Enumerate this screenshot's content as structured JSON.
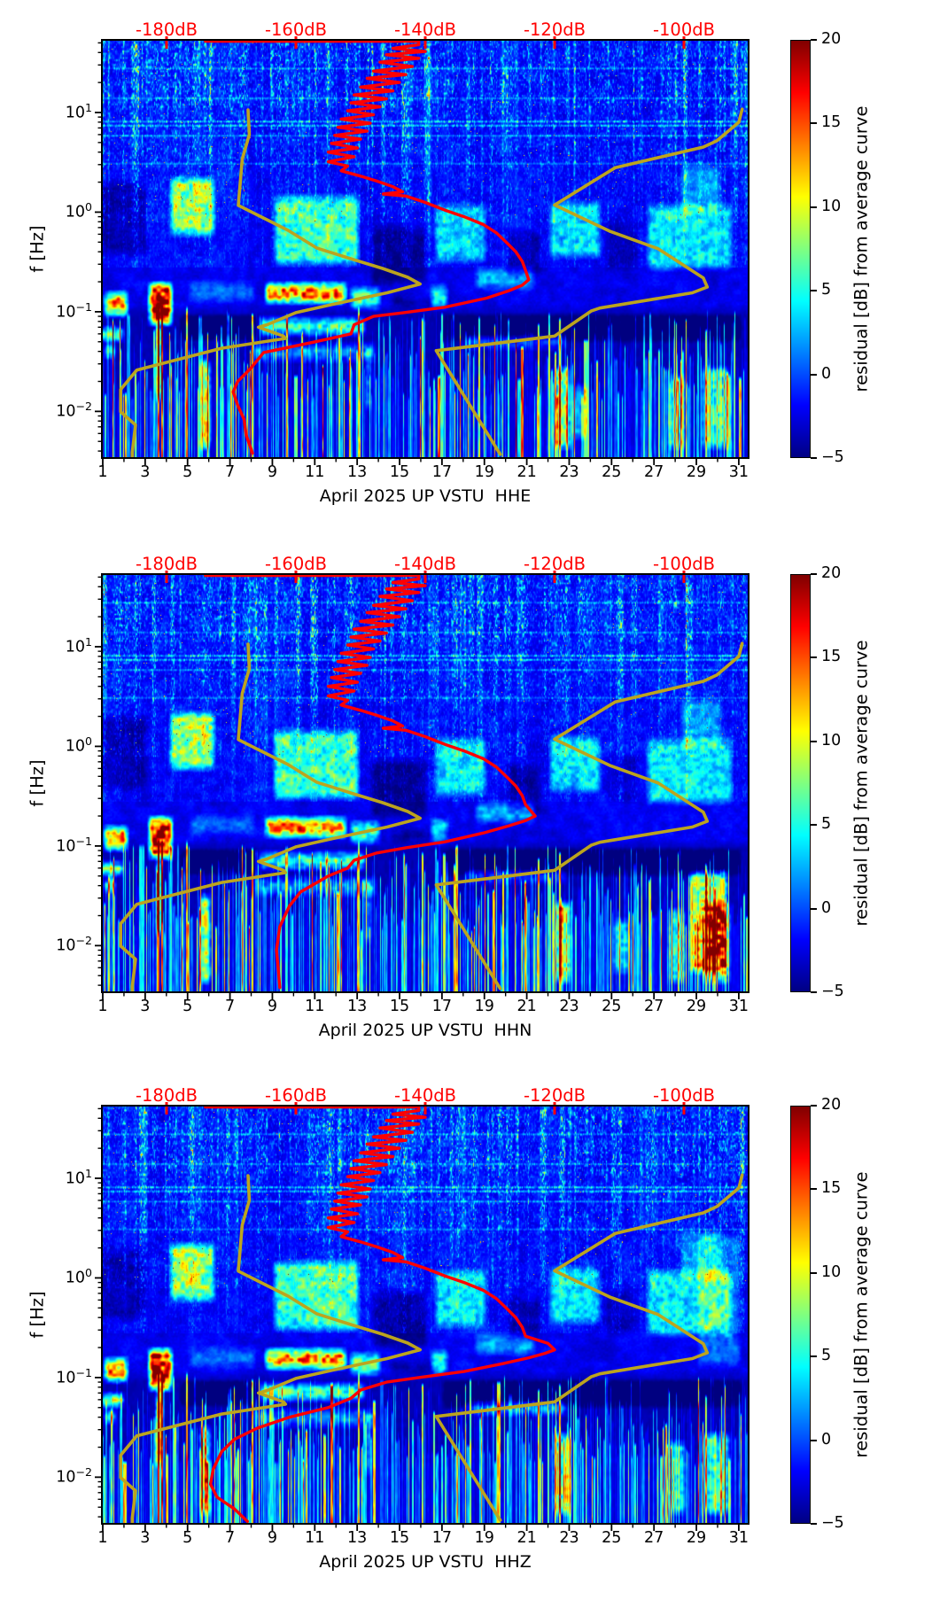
{
  "chart_data": {
    "type": "heatmap",
    "description": "Three daily power-spectral-density residual spectrograms (jet colormap) with overlaid average PSD curve (red) and noise-model curves (dark yellow)",
    "shared": {
      "ylabel": "f [Hz]",
      "y_tick_exponents": [
        "1",
        "0",
        "−1",
        "−2"
      ],
      "x_ticks": [
        1,
        3,
        5,
        7,
        9,
        11,
        13,
        15,
        17,
        19,
        21,
        23,
        25,
        27,
        29,
        31
      ],
      "x_range_days": [
        1,
        31.5
      ],
      "f_range_hz": [
        0.0034,
        53.6
      ],
      "top_axis_labels": [
        "-180dB",
        "-160dB",
        "-140dB",
        "-120dB",
        "-100dB"
      ],
      "top_axis_dB": [
        -180,
        -160,
        -140,
        -120,
        -100
      ],
      "dB_range": [
        -190,
        -90
      ],
      "colorbar": {
        "label": "residual [dB] from average curve",
        "tick_labels": [
          "20",
          "15",
          "10",
          "5",
          "0",
          "−5"
        ],
        "tick_values": [
          20,
          15,
          10,
          5,
          0,
          -5
        ],
        "range": [
          -5,
          20
        ],
        "colormap": "jet"
      },
      "colors": {
        "curve_red": "#ff0000",
        "curve_olive": "#bca41e",
        "top_axis_red": "#ff0000",
        "axis_black": "#000000"
      },
      "curves": {
        "low_noise_model_dB_f": [
          [
            -167.4,
            10.6
          ],
          [
            -167.2,
            6.0
          ],
          [
            -168.3,
            3.4
          ],
          [
            -168.9,
            1.17
          ],
          [
            -164.8,
            0.858
          ],
          [
            -161.2,
            0.656
          ],
          [
            -156.8,
            0.437
          ],
          [
            -151.1,
            0.334
          ],
          [
            -146.6,
            0.272
          ],
          [
            -142.7,
            0.222
          ],
          [
            -140.8,
            0.19
          ],
          [
            -145.9,
            0.155
          ],
          [
            -154.2,
            0.119
          ],
          [
            -160,
            0.098
          ],
          [
            -164.5,
            0.074
          ],
          [
            -165.8,
            0.07
          ],
          [
            -161.9,
            0.057
          ],
          [
            -161.6,
            0.054
          ],
          [
            -171.5,
            0.043
          ],
          [
            -184.6,
            0.026
          ],
          [
            -187.1,
            0.0166
          ],
          [
            -187.1,
            0.0099
          ],
          [
            -184.8,
            0.0073
          ],
          [
            -185.3,
            0.0039
          ],
          [
            -185.3,
            0.0034
          ]
        ],
        "high_noise_model_dB_f": [
          [
            -91,
            10.8
          ],
          [
            -91.5,
            8.0
          ],
          [
            -94.9,
            5.2
          ],
          [
            -97,
            4.5
          ],
          [
            -110.6,
            2.8
          ],
          [
            -120,
            1.18
          ],
          [
            -111.5,
            0.645
          ],
          [
            -104,
            0.43
          ],
          [
            -97,
            0.218
          ],
          [
            -96.4,
            0.177
          ],
          [
            -98.7,
            0.155
          ],
          [
            -113,
            0.109
          ],
          [
            -114.3,
            0.102
          ],
          [
            -120,
            0.057
          ],
          [
            -138.3,
            0.0407
          ],
          [
            -128.4,
            0.0037
          ]
        ],
        "red_base_dB_f": [
          [
            -174,
            52
          ],
          [
            -141,
            52
          ],
          [
            -141,
            48
          ],
          [
            -145,
            44
          ],
          [
            -140,
            41
          ],
          [
            -146,
            38
          ],
          [
            -141,
            35
          ],
          [
            -147,
            32
          ],
          [
            -142,
            29
          ],
          [
            -148,
            26
          ],
          [
            -143,
            24
          ],
          [
            -149,
            22
          ],
          [
            -144,
            20
          ],
          [
            -150,
            18
          ],
          [
            -145,
            16.5
          ],
          [
            -151,
            15
          ],
          [
            -146,
            13.7
          ],
          [
            -151.5,
            12.5
          ],
          [
            -147,
            11.4
          ],
          [
            -152,
            10.4
          ],
          [
            -148,
            9.5
          ],
          [
            -153,
            8.6
          ],
          [
            -148.5,
            7.8
          ],
          [
            -153.5,
            7.1
          ],
          [
            -149,
            6.5
          ],
          [
            -154,
            5.9
          ],
          [
            -150,
            5.4
          ],
          [
            -154.5,
            4.9
          ],
          [
            -150.5,
            4.4
          ],
          [
            -155,
            4.0
          ],
          [
            -151,
            3.6
          ],
          [
            -155,
            3.2
          ],
          [
            -152,
            2.9
          ],
          [
            -153,
            2.6
          ],
          [
            -150,
            2.3
          ],
          [
            -147.5,
            2.05
          ],
          [
            -145,
            1.8
          ],
          [
            -143.5,
            1.6
          ],
          [
            -146.5,
            1.52
          ],
          [
            -143,
            1.45
          ],
          [
            -140,
            1.25
          ],
          [
            -137,
            1.05
          ],
          [
            -134,
            0.9
          ],
          [
            -131,
            0.75
          ],
          [
            -129,
            0.62
          ],
          [
            -127.5,
            0.5
          ],
          [
            -126,
            0.4
          ],
          [
            -125,
            0.32
          ],
          [
            -124.5,
            0.26
          ]
        ]
      }
    },
    "subplots": [
      {
        "id": "HHE",
        "xlabel": "April 2025 UP VSTU  HHE",
        "seed": 11,
        "red_tail_dB_f": [
          [
            -124,
            0.21
          ],
          [
            -125,
            0.185
          ],
          [
            -127,
            0.163
          ],
          [
            -130.5,
            0.137
          ],
          [
            -137,
            0.111
          ],
          [
            -143.3,
            0.098
          ],
          [
            -148,
            0.09
          ],
          [
            -151,
            0.074
          ],
          [
            -151.5,
            0.06
          ],
          [
            -157,
            0.05
          ],
          [
            -165,
            0.039
          ],
          [
            -167,
            0.027
          ],
          [
            -169,
            0.02
          ],
          [
            -169.7,
            0.0157
          ],
          [
            -169,
            0.0115
          ],
          [
            -168,
            0.0083
          ],
          [
            -167.7,
            0.0058
          ],
          [
            -166.7,
            0.0038
          ]
        ],
        "extra_blobs": [
          [
            23.0,
            24.0,
            0.005,
            0.02,
            5
          ]
        ]
      },
      {
        "id": "HHN",
        "xlabel": "April 2025 UP VSTU  HHN",
        "seed": 23,
        "red_tail_dB_f": [
          [
            -123,
            0.2
          ],
          [
            -124.5,
            0.18
          ],
          [
            -127,
            0.16
          ],
          [
            -131,
            0.135
          ],
          [
            -137,
            0.11
          ],
          [
            -143,
            0.096
          ],
          [
            -147.5,
            0.085
          ],
          [
            -151,
            0.072
          ],
          [
            -152,
            0.06
          ],
          [
            -155,
            0.05
          ],
          [
            -159.3,
            0.0345
          ],
          [
            -161,
            0.025
          ],
          [
            -162.5,
            0.0155
          ],
          [
            -163,
            0.009
          ],
          [
            -162.7,
            0.0055
          ],
          [
            -162.5,
            0.0038
          ]
        ],
        "extra_blobs": [
          [
            28.6,
            30.6,
            0.005,
            0.06,
            12
          ],
          [
            25.0,
            26.0,
            0.005,
            0.02,
            6
          ]
        ]
      },
      {
        "id": "HHZ",
        "xlabel": "April 2025 UP VSTU  HHZ",
        "seed": 37,
        "red_tail_dB_f": [
          [
            -121,
            0.22
          ],
          [
            -120,
            0.19
          ],
          [
            -121.5,
            0.175
          ],
          [
            -124,
            0.158
          ],
          [
            -128,
            0.138
          ],
          [
            -134,
            0.115
          ],
          [
            -141,
            0.1
          ],
          [
            -146,
            0.09
          ],
          [
            -150,
            0.075
          ],
          [
            -151.5,
            0.062
          ],
          [
            -155,
            0.05
          ],
          [
            -161,
            0.04
          ],
          [
            -166,
            0.031
          ],
          [
            -169.5,
            0.024
          ],
          [
            -171.5,
            0.018
          ],
          [
            -172.8,
            0.012
          ],
          [
            -173.2,
            0.0085
          ],
          [
            -172.2,
            0.0063
          ],
          [
            -169.5,
            0.0048
          ],
          [
            -167.5,
            0.0036
          ]
        ],
        "extra_blobs": [
          [
            29.0,
            31.2,
            0.12,
            3.0,
            3
          ],
          [
            18.5,
            23.0,
            0.04,
            0.06,
            3
          ]
        ]
      }
    ],
    "texture": {
      "blobs_day_f_amp": [
        [
          1.0,
          2.3,
          0.085,
          0.17,
          16
        ],
        [
          0.8,
          2.1,
          0.048,
          0.075,
          13
        ],
        [
          1.0,
          1.7,
          0.033,
          0.05,
          12
        ],
        [
          3.1,
          4.4,
          0.07,
          0.21,
          22
        ],
        [
          3.45,
          3.9,
          0.012,
          0.08,
          18
        ],
        [
          8.6,
          12.6,
          0.115,
          0.21,
          17
        ],
        [
          8.3,
          13.5,
          0.055,
          0.095,
          10
        ],
        [
          8.0,
          14.0,
          0.03,
          0.052,
          5
        ],
        [
          12.6,
          14.2,
          0.1,
          0.19,
          9
        ],
        [
          16.4,
          17.4,
          0.1,
          0.2,
          8
        ],
        [
          5.0,
          8.3,
          0.12,
          0.22,
          3
        ],
        [
          18.5,
          21.5,
          0.16,
          0.3,
          5
        ],
        [
          18.0,
          23.0,
          0.04,
          0.065,
          4
        ],
        [
          4.1,
          6.4,
          0.55,
          2.4,
          10
        ],
        [
          9.0,
          13.2,
          0.28,
          1.6,
          8
        ],
        [
          16.6,
          19.2,
          0.3,
          1.3,
          6
        ],
        [
          22.0,
          24.6,
          0.33,
          1.4,
          6
        ],
        [
          26.6,
          30.8,
          0.25,
          1.3,
          6
        ],
        [
          28.2,
          30.3,
          0.9,
          3.2,
          4
        ],
        [
          13.6,
          16.4,
          0.18,
          0.8,
          -2.5
        ],
        [
          0.8,
          3.2,
          0.35,
          2.2,
          -2
        ],
        [
          20.0,
          21.8,
          0.2,
          0.7,
          -2
        ],
        [
          24.6,
          26.4,
          0.25,
          0.9,
          -1.5
        ],
        [
          4.6,
          8.4,
          0.05,
          0.098,
          -3.5
        ],
        [
          17.0,
          31.2,
          0.048,
          0.1,
          -3
        ],
        [
          14.5,
          17.5,
          0.1,
          0.16,
          -2
        ],
        [
          5.5,
          6.2,
          0.004,
          0.035,
          12
        ],
        [
          13.35,
          13.75,
          0.01,
          0.05,
          9
        ],
        [
          22.2,
          23.2,
          0.004,
          0.03,
          10
        ],
        [
          27.6,
          28.6,
          0.004,
          0.025,
          7
        ],
        [
          29.2,
          30.7,
          0.004,
          0.03,
          8
        ]
      ],
      "red_columns_day_amp_ftop": [
        [
          3.62,
          20,
          0.19
        ],
        [
          3.78,
          20,
          0.15
        ],
        [
          4.96,
          18,
          0.12
        ],
        [
          8.06,
          16,
          0.1
        ],
        [
          13.06,
          15,
          0.12
        ],
        [
          16.1,
          13,
          0.09
        ],
        [
          21.56,
          14,
          0.08
        ],
        [
          22.56,
          15,
          0.09
        ],
        [
          29.45,
          13,
          0.07
        ]
      ],
      "speckle_rows_f_amp": [
        [
          8.2,
          5
        ],
        [
          7.45,
          5
        ],
        [
          5.9,
          3.5
        ],
        [
          28,
          3
        ],
        [
          14,
          3
        ],
        [
          3.1,
          2.5
        ]
      ]
    }
  }
}
